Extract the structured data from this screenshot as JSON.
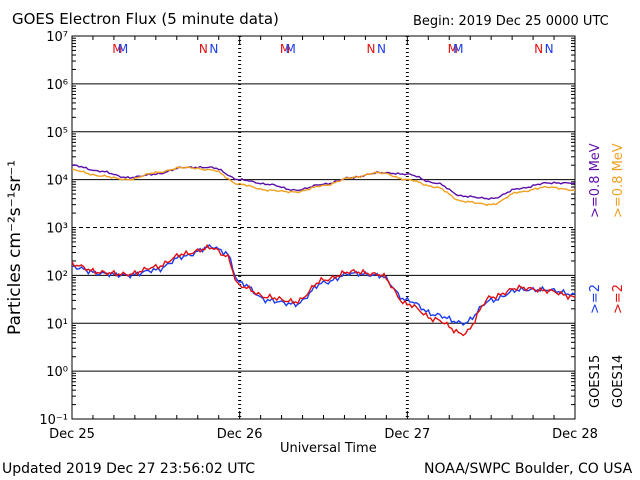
{
  "title": "GOES Electron Flux (5 minute data)",
  "begin": "Begin: 2019 Dec 25 0000 UTC",
  "footer_left": "Updated 2019 Dec 27 23:56:02 UTC",
  "footer_right": "NOAA/SWPC Boulder, CO USA",
  "colors": {
    "goes15_high": "#5b0fa8",
    "goes14_high": "#f0a020",
    "goes15_low": "#1a3cf0",
    "goes14_low": "#e01010"
  },
  "chart_data": {
    "type": "line",
    "xlabel": "Universal Time",
    "ylabel": "Particles cm⁻²s⁻¹sr⁻¹",
    "x_ticks": [
      "Dec 25",
      "Dec 26",
      "Dec 27",
      "Dec 28"
    ],
    "y_scale": "log",
    "ylim": [
      0.1,
      10000000
    ],
    "y_ticks": [
      "10⁻¹",
      "10⁰",
      "10¹",
      "10²",
      "10³",
      "10⁴",
      "10⁵",
      "10⁶",
      "10⁷"
    ],
    "x_unit": "hours since 2019 Dec 25 0000 UTC",
    "series": [
      {
        "name": ">=0.8 MeV",
        "satellite": "GOES15",
        "x": [
          0,
          4,
          8,
          12,
          16,
          20,
          24,
          28,
          32,
          36,
          40,
          44,
          48,
          52,
          56,
          60,
          64,
          68,
          72
        ],
        "y": [
          20000,
          15000,
          11000,
          13000,
          18000,
          18000,
          10000,
          8000,
          6000,
          8000,
          11000,
          14000,
          13000,
          8500,
          4500,
          4000,
          6500,
          8500,
          8500
        ]
      },
      {
        "name": ">=0.8 MeV",
        "satellite": "GOES14",
        "x": [
          0,
          4,
          8,
          12,
          16,
          20,
          24,
          28,
          32,
          36,
          40,
          44,
          48,
          52,
          56,
          60,
          64,
          68,
          72
        ],
        "y": [
          16000,
          12000,
          10000,
          14000,
          18000,
          16000,
          8000,
          6000,
          5500,
          7500,
          11000,
          14000,
          10000,
          7000,
          3500,
          3000,
          5500,
          7000,
          6000
        ]
      },
      {
        "name": ">=2 MeV",
        "satellite": "GOES15",
        "x": [
          0,
          4,
          8,
          12,
          16,
          20,
          22,
          24,
          28,
          32,
          36,
          40,
          44,
          48,
          52,
          56,
          60,
          64,
          68,
          72
        ],
        "y": [
          150,
          110,
          100,
          130,
          250,
          400,
          300,
          70,
          30,
          25,
          70,
          110,
          100,
          30,
          15,
          10,
          30,
          50,
          50,
          40
        ]
      },
      {
        "name": ">=2 MeV",
        "satellite": "GOES14",
        "x": [
          0,
          4,
          8,
          12,
          16,
          20,
          22,
          24,
          28,
          32,
          36,
          40,
          44,
          48,
          52,
          56,
          60,
          64,
          68,
          72
        ],
        "y": [
          170,
          115,
          105,
          150,
          280,
          380,
          260,
          60,
          35,
          28,
          80,
          120,
          105,
          25,
          12,
          6,
          35,
          55,
          48,
          35
        ]
      }
    ],
    "markers": [
      {
        "label": "M",
        "satellite": "GOES14",
        "x": 6.5
      },
      {
        "label": "M",
        "satellite": "GOES15",
        "x": 7.3
      },
      {
        "label": "N",
        "satellite": "GOES14",
        "x": 18.8
      },
      {
        "label": "N",
        "satellite": "GOES15",
        "x": 20.3
      },
      {
        "label": "M",
        "satellite": "GOES14",
        "x": 30.5
      },
      {
        "label": "M",
        "satellite": "GOES15",
        "x": 31.3
      },
      {
        "label": "N",
        "satellite": "GOES14",
        "x": 42.8
      },
      {
        "label": "N",
        "satellite": "GOES15",
        "x": 44.3
      },
      {
        "label": "M",
        "satellite": "GOES14",
        "x": 54.5
      },
      {
        "label": "M",
        "satellite": "GOES15",
        "x": 55.3
      },
      {
        "label": "N",
        "satellite": "GOES14",
        "x": 66.8
      },
      {
        "label": "N",
        "satellite": "GOES15",
        "x": 68.3
      }
    ],
    "legend": {
      "high_goes15": ">=0.8 MeV",
      "high_goes14": ">=0.8 MeV",
      "low_goes15": ">=2",
      "low_goes14": ">=2",
      "sat15": "GOES15",
      "sat14": "GOES14"
    }
  }
}
